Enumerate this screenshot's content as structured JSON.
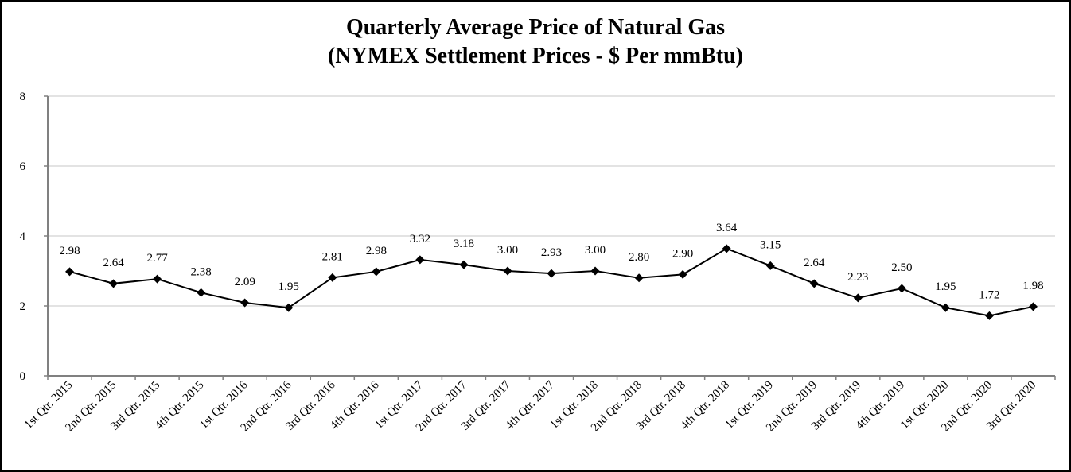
{
  "chart_data": {
    "type": "line",
    "title": "Quarterly Average Price of Natural Gas",
    "subtitle": "(NYMEX Settlement Prices - $ Per mmBtu)",
    "xlabel": "",
    "ylabel": "",
    "ylim": [
      0,
      8
    ],
    "yticks": [
      "0",
      "2",
      "4",
      "6",
      "8"
    ],
    "grid": true,
    "categories": [
      "1st Qtr. 2015",
      "2nd Qtr. 2015",
      "3rd Qtr. 2015",
      "4th Qtr. 2015",
      "1st Qtr. 2016",
      "2nd Qtr. 2016",
      "3rd Qtr. 2016",
      "4th Qtr. 2016",
      "1st Qtr. 2017",
      "2nd Qtr. 2017",
      "3rd Qtr. 2017",
      "4th Qtr. 2017",
      "1st Qtr. 2018",
      "2nd Qtr. 2018",
      "3rd Qtr. 2018",
      "4th Qtr. 2018",
      "1st Qtr. 2019",
      "2nd Qtr. 2019",
      "3rd Qtr. 2019",
      "4th Qtr. 2019",
      "1st Qtr. 2020",
      "2nd Qtr. 2020",
      "3rd Qtr. 2020"
    ],
    "values": [
      2.98,
      2.64,
      2.77,
      2.38,
      2.09,
      1.95,
      2.81,
      2.98,
      3.32,
      3.18,
      3.0,
      2.93,
      3.0,
      2.8,
      2.9,
      3.64,
      3.15,
      2.64,
      2.23,
      2.5,
      1.95,
      1.72,
      1.98
    ],
    "labels": [
      "2.98",
      "2.64",
      "2.77",
      "2.38",
      "2.09",
      "1.95",
      "2.81",
      "2.98",
      "3.32",
      "3.18",
      "3.00",
      "2.93",
      "3.00",
      "2.80",
      "2.90",
      "3.64",
      "3.15",
      "2.64",
      "2.23",
      "2.50",
      "1.95",
      "1.72",
      "1.98"
    ],
    "colors": {
      "line": "#000000",
      "marker": "#000000",
      "grid": "#e3e3e3",
      "axis": "#808080"
    }
  }
}
